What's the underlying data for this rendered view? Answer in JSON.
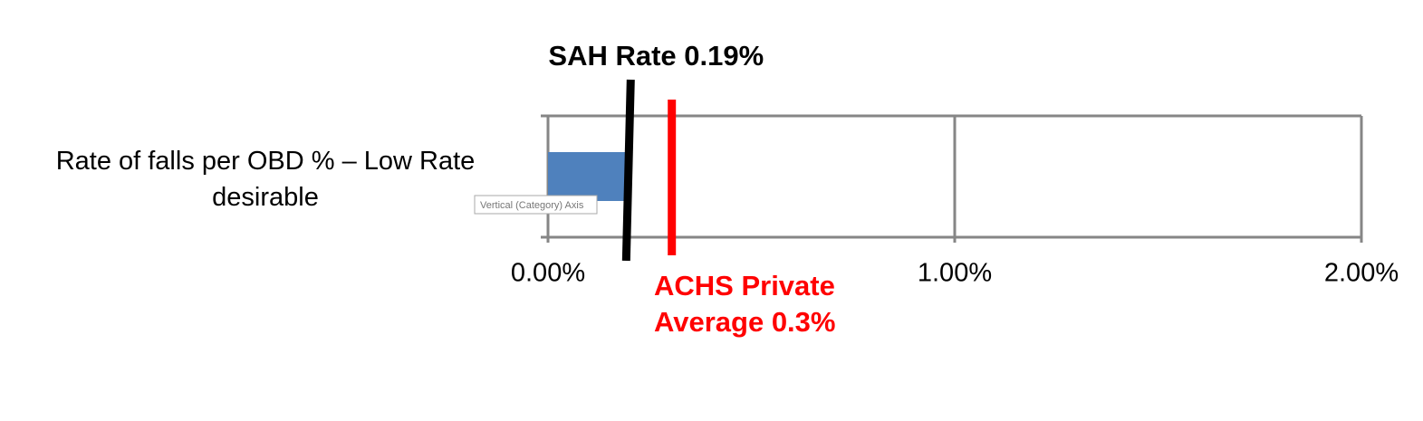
{
  "chart_data": {
    "type": "hbar",
    "categories": [
      "Rate of falls per OBD %  – Low Rate desirable"
    ],
    "values": [
      0.19
    ],
    "color": "#4f81bd",
    "xlim": [
      0,
      2
    ],
    "xticks": [
      {
        "value": 0,
        "label": "0.00%"
      },
      {
        "value": 1,
        "label": "1.00%"
      },
      {
        "value": 2,
        "label": "2.00%"
      }
    ],
    "grid": true,
    "reference_lines": [
      {
        "value": 0.19,
        "label": "SAH Rate 0.19%",
        "color": "#000000"
      },
      {
        "value": 0.3,
        "label_lines": [
          "ACHS Private",
          "Average 0.3%"
        ],
        "color": "#ff0000"
      }
    ],
    "tooltip": "Vertical (Category) Axis"
  }
}
